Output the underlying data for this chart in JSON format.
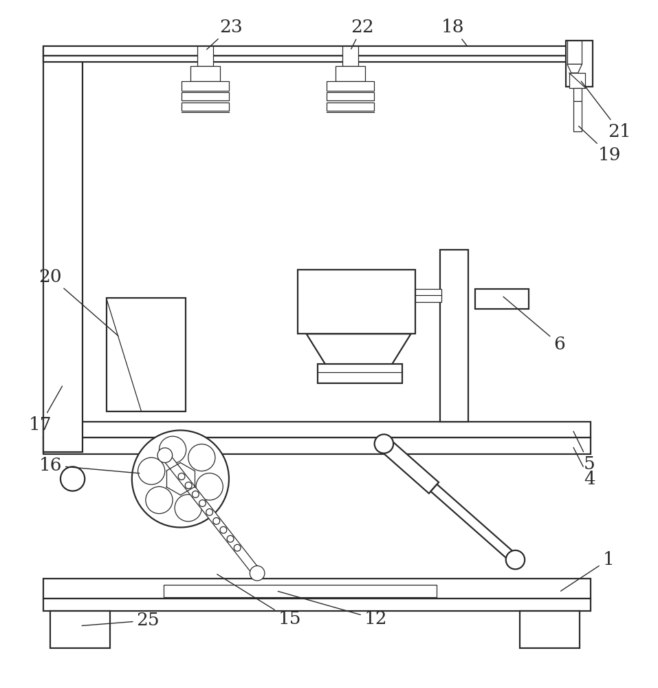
{
  "bg_color": "#ffffff",
  "line_color": "#2a2a2a",
  "lw": 1.6,
  "lw2": 0.9,
  "fig_width": 9.57,
  "fig_height": 10.0
}
